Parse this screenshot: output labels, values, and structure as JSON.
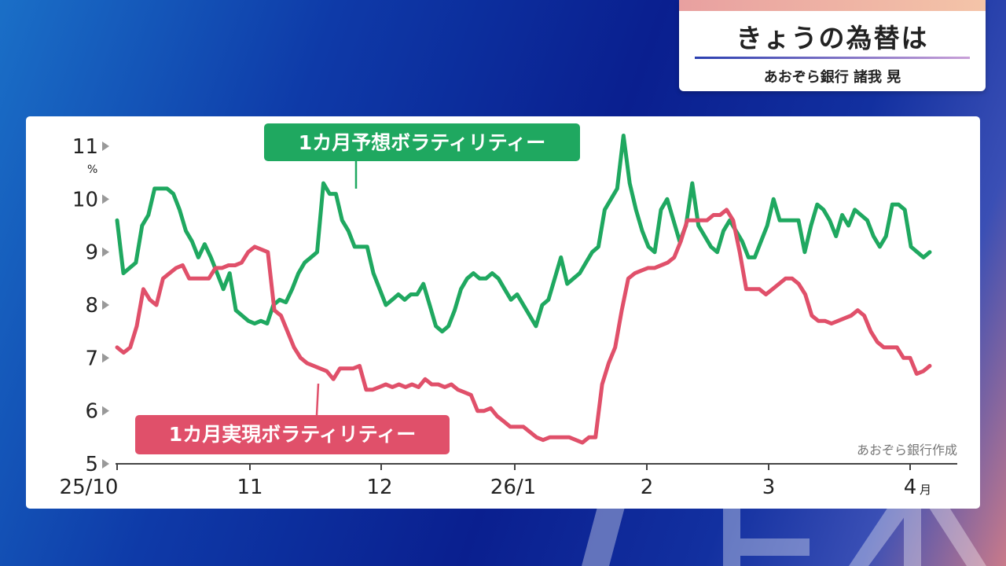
{
  "header": {
    "title": "きょうの為替は",
    "subtitle": "あおぞら銀行  諸我 晃"
  },
  "chart_data": {
    "type": "line",
    "ylim": [
      5,
      11
    ],
    "yticks": [
      5,
      6,
      7,
      8,
      9,
      10,
      11
    ],
    "yunit": "%",
    "xticks": [
      "25/10",
      "11",
      "12",
      "26/1",
      "2",
      "3",
      "4"
    ],
    "xunit": "月",
    "credit": "あおぞら銀行作成",
    "series": [
      {
        "name": "1カ月予想ボラティリティー",
        "color": "#1fa860",
        "values": [
          9.6,
          8.6,
          8.7,
          8.8,
          9.5,
          9.7,
          10.2,
          10.2,
          10.2,
          10.1,
          9.8,
          9.4,
          9.2,
          8.9,
          9.15,
          8.9,
          8.6,
          8.3,
          8.6,
          7.9,
          7.8,
          7.7,
          7.65,
          7.7,
          7.65,
          8.0,
          8.1,
          8.05,
          8.3,
          8.6,
          8.8,
          8.9,
          9.0,
          10.3,
          10.1,
          10.1,
          9.6,
          9.4,
          9.1,
          9.1,
          9.1,
          8.6,
          8.3,
          8.0,
          8.1,
          8.2,
          8.1,
          8.2,
          8.2,
          8.4,
          8.0,
          7.6,
          7.5,
          7.6,
          7.9,
          8.3,
          8.5,
          8.6,
          8.5,
          8.5,
          8.6,
          8.5,
          8.3,
          8.1,
          8.2,
          8.0,
          7.8,
          7.6,
          8.0,
          8.1,
          8.5,
          8.9,
          8.4,
          8.5,
          8.6,
          8.8,
          9.0,
          9.1,
          9.8,
          10.0,
          10.2,
          11.2,
          10.3,
          9.8,
          9.4,
          9.1,
          9.0,
          9.8,
          10.0,
          9.6,
          9.2,
          9.5,
          10.3,
          9.5,
          9.3,
          9.1,
          9.0,
          9.4,
          9.6,
          9.4,
          9.2,
          8.9,
          8.9,
          9.2,
          9.5,
          10.0,
          9.6,
          9.6,
          9.6,
          9.6,
          9.0,
          9.5,
          9.9,
          9.8,
          9.6,
          9.3,
          9.7,
          9.5,
          9.8,
          9.7,
          9.6,
          9.3,
          9.1,
          9.3,
          9.9,
          9.9,
          9.8,
          9.1,
          9.0,
          8.9,
          9.0
        ],
        "name_label": "1カ月予想ボラティリティー"
      },
      {
        "name": "1カ月実現ボラティリティー",
        "color": "#e0506a",
        "values": [
          7.2,
          7.1,
          7.2,
          7.6,
          8.3,
          8.1,
          8.0,
          8.5,
          8.6,
          8.7,
          8.75,
          8.5,
          8.5,
          8.5,
          8.5,
          8.7,
          8.7,
          8.75,
          8.75,
          8.8,
          9.0,
          9.1,
          9.05,
          9.0,
          7.9,
          7.8,
          7.5,
          7.2,
          7.0,
          6.9,
          6.85,
          6.8,
          6.75,
          6.6,
          6.8,
          6.8,
          6.8,
          6.85,
          6.4,
          6.4,
          6.45,
          6.5,
          6.45,
          6.5,
          6.45,
          6.5,
          6.45,
          6.6,
          6.5,
          6.5,
          6.45,
          6.5,
          6.4,
          6.35,
          6.3,
          6.0,
          6.0,
          6.05,
          5.9,
          5.8,
          5.7,
          5.7,
          5.7,
          5.6,
          5.5,
          5.45,
          5.5,
          5.5,
          5.5,
          5.5,
          5.45,
          5.4,
          5.5,
          5.5,
          6.5,
          6.9,
          7.2,
          7.9,
          8.5,
          8.6,
          8.65,
          8.7,
          8.7,
          8.75,
          8.8,
          8.9,
          9.2,
          9.6,
          9.6,
          9.6,
          9.6,
          9.7,
          9.7,
          9.8,
          9.6,
          9.0,
          8.3,
          8.3,
          8.3,
          8.2,
          8.3,
          8.4,
          8.5,
          8.5,
          8.4,
          8.2,
          7.8,
          7.7,
          7.7,
          7.65,
          7.7,
          7.75,
          7.8,
          7.9,
          7.8,
          7.5,
          7.3,
          7.2,
          7.2,
          7.2,
          7.0,
          7.0,
          6.7,
          6.75,
          6.85
        ],
        "name_label": "1カ月実現ボラティリティー"
      }
    ]
  }
}
